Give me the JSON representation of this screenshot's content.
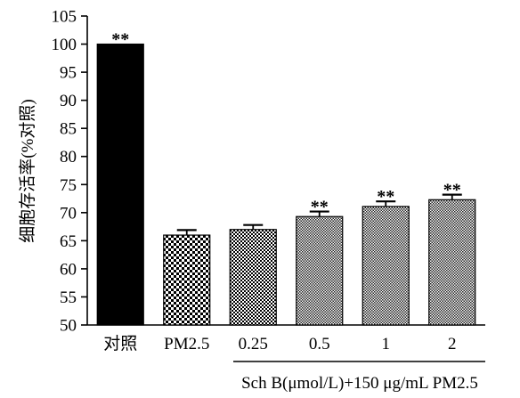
{
  "chart_data": {
    "type": "bar",
    "categories": [
      "对照",
      "PM2.5",
      "0.25",
      "0.5",
      "1",
      "2"
    ],
    "values": [
      100,
      66,
      67,
      69.3,
      71.1,
      72.3
    ],
    "errors": [
      0,
      0.9,
      0.8,
      0.9,
      0.9,
      0.9
    ],
    "significance": [
      "**",
      "",
      "",
      "**",
      "**",
      "**"
    ],
    "fills": [
      "solid-black",
      "checker-coarse",
      "checker-medium",
      "checker-fine",
      "checker-fine",
      "checker-fine"
    ],
    "title": "",
    "ylabel": "细胞存活率(%对照)",
    "xlabel": "Sch B(μmol/L)+150 μg/mL PM2.5",
    "ylim": [
      50,
      105
    ],
    "yticks": [
      50,
      55,
      60,
      65,
      70,
      75,
      80,
      85,
      90,
      95,
      100,
      105
    ],
    "grid": false
  }
}
